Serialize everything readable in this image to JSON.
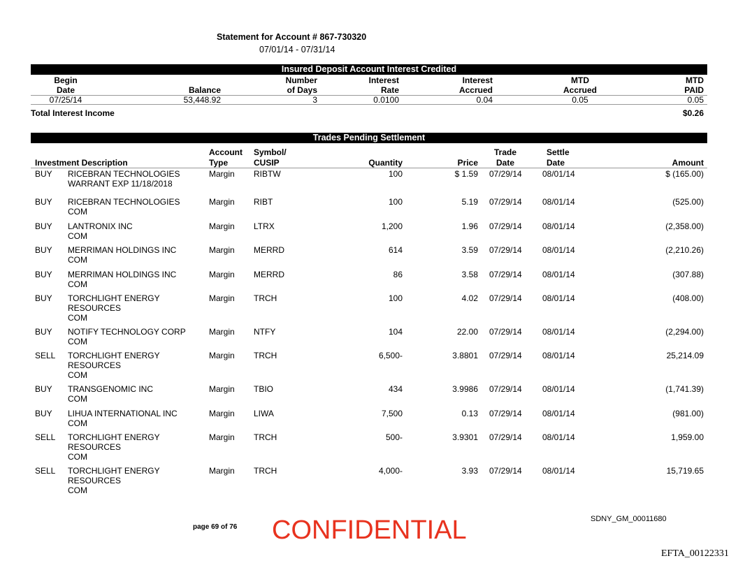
{
  "header": {
    "title": "Statement for Account # 867-730320",
    "period": "07/01/14 - 07/31/14"
  },
  "interest": {
    "section_title": "Insured Deposit Account Interest Credited",
    "columns": [
      {
        "line1": "Begin",
        "line2": "Date"
      },
      {
        "line1": "",
        "line2": "Balance"
      },
      {
        "line1": "Number",
        "line2": "of Days"
      },
      {
        "line1": "Interest",
        "line2": "Rate"
      },
      {
        "line1": "Interest",
        "line2": "Accrued"
      },
      {
        "line1": "MTD",
        "line2": "Accrued"
      },
      {
        "line1": "MTD",
        "line2": "PAID"
      }
    ],
    "row": [
      "07/25/14",
      "53,448.92",
      "3",
      "0.0100",
      "0.04",
      "0.05",
      "0.05"
    ],
    "total_label": "Total Interest Income",
    "total_value": "$0.26"
  },
  "trades": {
    "section_title": "Trades Pending Settlement",
    "columns": {
      "description": "Investment Description",
      "account_type": [
        "Account",
        "Type"
      ],
      "symbol": [
        "Symbol/",
        "CUSIP"
      ],
      "quantity": "Quantity",
      "price": "Price",
      "trade_date": [
        "Trade",
        "Date"
      ],
      "settle_date": [
        "Settle",
        "Date"
      ],
      "amount": "Amount"
    },
    "rows": [
      {
        "action": "BUY",
        "desc": [
          "RICEBRAN TECHNOLOGIES",
          "WARRANT EXP 11/18/2018"
        ],
        "type": "Margin",
        "symbol": "RIBTW",
        "qty": "100",
        "price": "$ 1.59",
        "trade": "07/29/14",
        "settle": "08/01/14",
        "amount": "$ (165.00)"
      },
      {
        "action": "BUY",
        "desc": [
          "RICEBRAN TECHNOLOGIES",
          "COM"
        ],
        "type": "Margin",
        "symbol": "RIBT",
        "qty": "100",
        "price": "5.19",
        "trade": "07/29/14",
        "settle": "08/01/14",
        "amount": "(525.00)"
      },
      {
        "action": "BUY",
        "desc": [
          "LANTRONIX INC",
          "COM"
        ],
        "type": "Margin",
        "symbol": "LTRX",
        "qty": "1,200",
        "price": "1.96",
        "trade": "07/29/14",
        "settle": "08/01/14",
        "amount": "(2,358.00)"
      },
      {
        "action": "BUY",
        "desc": [
          "MERRIMAN HOLDINGS INC",
          "COM"
        ],
        "type": "Margin",
        "symbol": "MERRD",
        "qty": "614",
        "price": "3.59",
        "trade": "07/29/14",
        "settle": "08/01/14",
        "amount": "(2,210.26)"
      },
      {
        "action": "BUY",
        "desc": [
          "MERRIMAN HOLDINGS INC",
          "COM"
        ],
        "type": "Margin",
        "symbol": "MERRD",
        "qty": "86",
        "price": "3.58",
        "trade": "07/29/14",
        "settle": "08/01/14",
        "amount": "(307.88)"
      },
      {
        "action": "BUY",
        "desc": [
          "TORCHLIGHT ENERGY",
          "RESOURCES",
          "COM"
        ],
        "type": "Margin",
        "symbol": "TRCH",
        "qty": "100",
        "price": "4.02",
        "trade": "07/29/14",
        "settle": "08/01/14",
        "amount": "(408.00)"
      },
      {
        "action": "BUY",
        "desc": [
          "NOTIFY TECHNOLOGY CORP",
          "COM"
        ],
        "type": "Margin",
        "symbol": "NTFY",
        "qty": "104",
        "price": "22.00",
        "trade": "07/29/14",
        "settle": "08/01/14",
        "amount": "(2,294.00)"
      },
      {
        "action": "SELL",
        "desc": [
          "TORCHLIGHT ENERGY",
          "RESOURCES",
          "COM"
        ],
        "type": "Margin",
        "symbol": "TRCH",
        "qty": "6,500-",
        "price": "3.8801",
        "trade": "07/29/14",
        "settle": "08/01/14",
        "amount": "25,214.09"
      },
      {
        "action": "BUY",
        "desc": [
          "TRANSGENOMIC INC",
          "COM"
        ],
        "type": "Margin",
        "symbol": "TBIO",
        "qty": "434",
        "price": "3.9986",
        "trade": "07/29/14",
        "settle": "08/01/14",
        "amount": "(1,741.39)"
      },
      {
        "action": "BUY",
        "desc": [
          "LIHUA INTERNATIONAL INC",
          "COM"
        ],
        "type": "Margin",
        "symbol": "LIWA",
        "qty": "7,500",
        "price": "0.13",
        "trade": "07/29/14",
        "settle": "08/01/14",
        "amount": "(981.00)"
      },
      {
        "action": "SELL",
        "desc": [
          "TORCHLIGHT ENERGY",
          "RESOURCES",
          "COM"
        ],
        "type": "Margin",
        "symbol": "TRCH",
        "qty": "500-",
        "price": "3.9301",
        "trade": "07/29/14",
        "settle": "08/01/14",
        "amount": "1,959.00"
      },
      {
        "action": "SELL",
        "desc": [
          "TORCHLIGHT ENERGY",
          "RESOURCES",
          "COM"
        ],
        "type": "Margin",
        "symbol": "TRCH",
        "qty": "4,000-",
        "price": "3.93",
        "trade": "07/29/14",
        "settle": "08/01/14",
        "amount": "15,719.65"
      }
    ]
  },
  "footer": {
    "page": "page 69 of 76",
    "confidential": "CONFIDENTIAL",
    "doc_id": "SDNY_GM_00011680",
    "efta": "EFTA_00122331",
    "confidential_color": "#e8321e"
  }
}
